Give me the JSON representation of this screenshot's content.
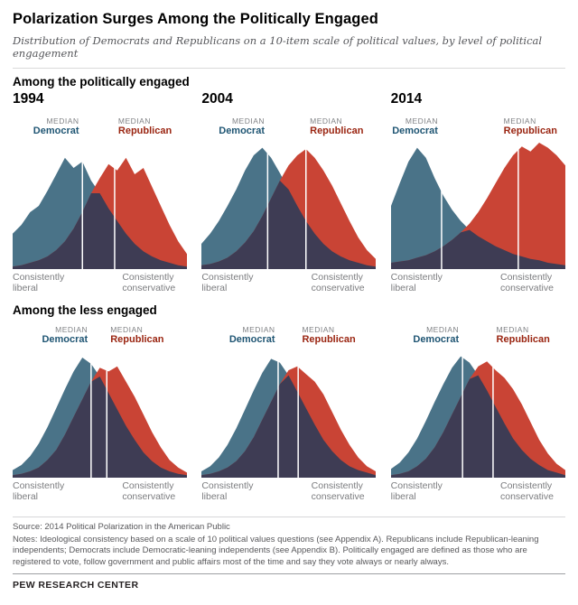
{
  "header": {
    "title": "Polarization Surges Among the Politically Engaged",
    "subtitle": "Distribution of Democrats and Republicans on a 10-item scale of political values, by level of political engagement"
  },
  "sections": [
    {
      "heading": "Among the politically engaged"
    },
    {
      "heading": "Among the less engaged"
    }
  ],
  "labels": {
    "median": "MEDIAN",
    "democrat": "Democrat",
    "republican": "Republican",
    "axis_left": "Consistently liberal",
    "axis_right": "Consistently conservative"
  },
  "colors": {
    "democrat": "#4a7388",
    "republican": "#c94435",
    "overlap": "#3e3c54",
    "median_line": "#ffffff"
  },
  "chart_data": [
    {
      "id": "engaged-1994",
      "type": "area",
      "section": "Among the politically engaged",
      "year": "1994",
      "x_range": [
        "Consistently liberal",
        "Consistently conservative"
      ],
      "values_unit": "relative_density_0_to_1",
      "median_democrat": 0.4,
      "median_republican": 0.585,
      "democrat": [
        0.28,
        0.35,
        0.45,
        0.5,
        0.62,
        0.75,
        0.88,
        0.8,
        0.85,
        0.7,
        0.6,
        0.48,
        0.38,
        0.28,
        0.2,
        0.14,
        0.1,
        0.07,
        0.05,
        0.03,
        0.02
      ],
      "republican": [
        0.02,
        0.03,
        0.05,
        0.07,
        0.1,
        0.15,
        0.22,
        0.32,
        0.45,
        0.6,
        0.72,
        0.83,
        0.78,
        0.88,
        0.75,
        0.8,
        0.65,
        0.5,
        0.35,
        0.22,
        0.12
      ]
    },
    {
      "id": "engaged-2004",
      "type": "area",
      "section": "Among the politically engaged",
      "year": "2004",
      "x_range": [
        "Consistently liberal",
        "Consistently conservative"
      ],
      "values_unit": "relative_density_0_to_1",
      "median_democrat": 0.38,
      "median_republican": 0.6,
      "democrat": [
        0.2,
        0.28,
        0.38,
        0.5,
        0.63,
        0.78,
        0.9,
        0.96,
        0.88,
        0.76,
        0.63,
        0.5,
        0.38,
        0.28,
        0.2,
        0.14,
        0.1,
        0.07,
        0.05,
        0.03,
        0.02
      ],
      "republican": [
        0.03,
        0.04,
        0.06,
        0.09,
        0.14,
        0.21,
        0.3,
        0.42,
        0.56,
        0.7,
        0.82,
        0.9,
        0.95,
        0.88,
        0.78,
        0.66,
        0.52,
        0.38,
        0.25,
        0.15,
        0.08
      ]
    },
    {
      "id": "engaged-2014",
      "type": "area",
      "section": "Among the politically engaged",
      "year": "2014",
      "x_range": [
        "Consistently liberal",
        "Consistently conservative"
      ],
      "values_unit": "relative_density_0_to_1",
      "median_democrat": 0.29,
      "median_republican": 0.73,
      "democrat": [
        0.5,
        0.68,
        0.85,
        0.96,
        0.88,
        0.72,
        0.58,
        0.47,
        0.38,
        0.31,
        0.26,
        0.22,
        0.18,
        0.15,
        0.12,
        0.1,
        0.08,
        0.07,
        0.05,
        0.04,
        0.03
      ],
      "republican": [
        0.05,
        0.06,
        0.07,
        0.09,
        0.11,
        0.14,
        0.18,
        0.23,
        0.29,
        0.36,
        0.45,
        0.56,
        0.68,
        0.8,
        0.9,
        0.97,
        0.93,
        1.0,
        0.96,
        0.9,
        0.82
      ]
    },
    {
      "id": "less-engaged-1994",
      "type": "area",
      "section": "Among the less engaged",
      "year": "",
      "x_range": [
        "Consistently liberal",
        "Consistently conservative"
      ],
      "values_unit": "relative_density_0_to_1",
      "median_democrat": 0.45,
      "median_republican": 0.54,
      "democrat": [
        0.06,
        0.1,
        0.17,
        0.27,
        0.4,
        0.55,
        0.7,
        0.84,
        0.95,
        0.9,
        0.8,
        0.67,
        0.54,
        0.41,
        0.3,
        0.2,
        0.13,
        0.08,
        0.05,
        0.03,
        0.02
      ],
      "republican": [
        0.02,
        0.03,
        0.05,
        0.08,
        0.14,
        0.22,
        0.34,
        0.48,
        0.62,
        0.76,
        0.87,
        0.84,
        0.88,
        0.76,
        0.64,
        0.5,
        0.36,
        0.24,
        0.14,
        0.08,
        0.04
      ]
    },
    {
      "id": "less-engaged-2004",
      "type": "area",
      "section": "Among the less engaged",
      "year": "",
      "x_range": [
        "Consistently liberal",
        "Consistently conservative"
      ],
      "values_unit": "relative_density_0_to_1",
      "median_democrat": 0.44,
      "median_republican": 0.555,
      "democrat": [
        0.05,
        0.09,
        0.16,
        0.26,
        0.39,
        0.54,
        0.69,
        0.83,
        0.94,
        0.91,
        0.81,
        0.68,
        0.55,
        0.42,
        0.3,
        0.21,
        0.14,
        0.09,
        0.06,
        0.04,
        0.02
      ],
      "republican": [
        0.02,
        0.03,
        0.05,
        0.08,
        0.13,
        0.21,
        0.32,
        0.46,
        0.6,
        0.74,
        0.85,
        0.88,
        0.82,
        0.76,
        0.66,
        0.52,
        0.38,
        0.26,
        0.16,
        0.09,
        0.05
      ]
    },
    {
      "id": "less-engaged-2014",
      "type": "area",
      "section": "Among the less engaged",
      "year": "",
      "x_range": [
        "Consistently liberal",
        "Consistently conservative"
      ],
      "values_unit": "relative_density_0_to_1",
      "median_democrat": 0.41,
      "median_republican": 0.585,
      "democrat": [
        0.07,
        0.12,
        0.2,
        0.31,
        0.45,
        0.6,
        0.74,
        0.87,
        0.96,
        0.91,
        0.81,
        0.69,
        0.56,
        0.43,
        0.31,
        0.22,
        0.15,
        0.1,
        0.06,
        0.04,
        0.02
      ],
      "republican": [
        0.02,
        0.03,
        0.05,
        0.09,
        0.15,
        0.24,
        0.36,
        0.5,
        0.64,
        0.78,
        0.88,
        0.92,
        0.85,
        0.79,
        0.7,
        0.58,
        0.44,
        0.3,
        0.19,
        0.11,
        0.06
      ]
    }
  ],
  "notes": {
    "source": "Source: 2014 Political Polarization in the American Public",
    "text": "Notes: Ideological consistency based on a scale of 10 political values questions (see Appendix A). Republicans include Republican-leaning independents; Democrats include Democratic-leaning independents (see Appendix B). Politically engaged are defined as those who are registered to vote, follow government and public affairs most of the time and say they vote always or nearly always."
  },
  "footer": {
    "brand": "PEW RESEARCH CENTER"
  }
}
